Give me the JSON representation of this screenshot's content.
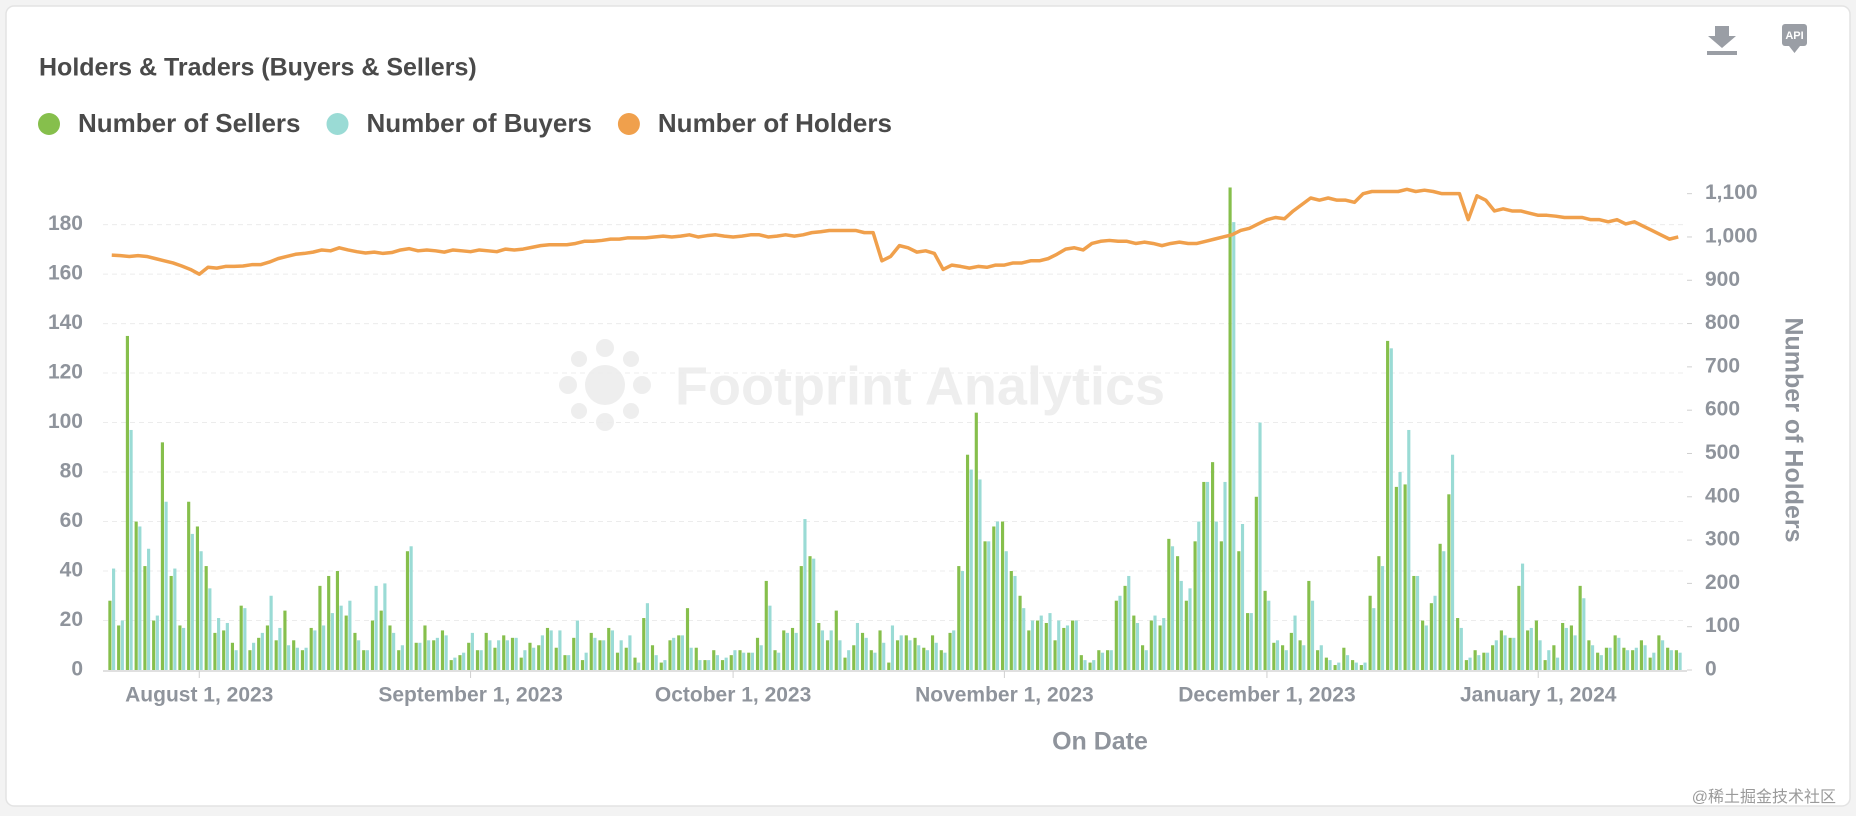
{
  "toolbar": {
    "api": "API"
  },
  "footer": "@稀土掘金技术社区",
  "chart_data": {
    "type": "bar-line",
    "title": "Holders & Traders (Buyers & Sellers)",
    "watermark": "Footprint Analytics",
    "xlabel": "On Date",
    "y2label": "Number of Holders",
    "legend": "top-left",
    "grid": true,
    "xlim": [
      "2023-07-21",
      "2024-01-18"
    ],
    "xticks": [
      {
        "value": "2023-08-01",
        "label": "August 1, 2023"
      },
      {
        "value": "2023-09-01",
        "label": "September 1, 2023"
      },
      {
        "value": "2023-10-01",
        "label": "October 1, 2023"
      },
      {
        "value": "2023-11-01",
        "label": "November 1, 2023"
      },
      {
        "value": "2023-12-01",
        "label": "December 1, 2023"
      },
      {
        "value": "2024-01-01",
        "label": "January 1, 2024"
      }
    ],
    "ylim": [
      0,
      196
    ],
    "yticks": [
      0,
      20,
      40,
      60,
      80,
      100,
      120,
      140,
      160,
      180
    ],
    "y2lim": [
      0,
      1120
    ],
    "y2ticks": [
      0,
      100,
      200,
      300,
      400,
      500,
      600,
      700,
      800,
      900,
      {
        "value": 1000,
        "label": "1,000"
      },
      {
        "value": 1100,
        "label": "1,100"
      }
    ],
    "x": [
      "2023-07-22",
      "2023-07-23",
      "2023-07-24",
      "2023-07-25",
      "2023-07-26",
      "2023-07-27",
      "2023-07-28",
      "2023-07-29",
      "2023-07-30",
      "2023-07-31",
      "2023-08-01",
      "2023-08-02",
      "2023-08-03",
      "2023-08-04",
      "2023-08-05",
      "2023-08-06",
      "2023-08-07",
      "2023-08-08",
      "2023-08-09",
      "2023-08-10",
      "2023-08-11",
      "2023-08-12",
      "2023-08-13",
      "2023-08-14",
      "2023-08-15",
      "2023-08-16",
      "2023-08-17",
      "2023-08-18",
      "2023-08-19",
      "2023-08-20",
      "2023-08-21",
      "2023-08-22",
      "2023-08-23",
      "2023-08-24",
      "2023-08-25",
      "2023-08-26",
      "2023-08-27",
      "2023-08-28",
      "2023-08-29",
      "2023-08-30",
      "2023-08-31",
      "2023-09-01",
      "2023-09-02",
      "2023-09-03",
      "2023-09-04",
      "2023-09-05",
      "2023-09-06",
      "2023-09-07",
      "2023-09-08",
      "2023-09-09",
      "2023-09-10",
      "2023-09-11",
      "2023-09-12",
      "2023-09-13",
      "2023-09-14",
      "2023-09-15",
      "2023-09-16",
      "2023-09-17",
      "2023-09-18",
      "2023-09-19",
      "2023-09-20",
      "2023-09-21",
      "2023-09-22",
      "2023-09-23",
      "2023-09-24",
      "2023-09-25",
      "2023-09-26",
      "2023-09-27",
      "2023-09-28",
      "2023-09-29",
      "2023-09-30",
      "2023-10-01",
      "2023-10-02",
      "2023-10-03",
      "2023-10-04",
      "2023-10-05",
      "2023-10-06",
      "2023-10-07",
      "2023-10-08",
      "2023-10-09",
      "2023-10-10",
      "2023-10-11",
      "2023-10-12",
      "2023-10-13",
      "2023-10-14",
      "2023-10-15",
      "2023-10-16",
      "2023-10-17",
      "2023-10-18",
      "2023-10-19",
      "2023-10-20",
      "2023-10-21",
      "2023-10-22",
      "2023-10-23",
      "2023-10-24",
      "2023-10-25",
      "2023-10-26",
      "2023-10-27",
      "2023-10-28",
      "2023-10-29",
      "2023-10-30",
      "2023-10-31",
      "2023-11-01",
      "2023-11-02",
      "2023-11-03",
      "2023-11-04",
      "2023-11-05",
      "2023-11-06",
      "2023-11-07",
      "2023-11-08",
      "2023-11-09",
      "2023-11-10",
      "2023-11-11",
      "2023-11-12",
      "2023-11-13",
      "2023-11-14",
      "2023-11-15",
      "2023-11-16",
      "2023-11-17",
      "2023-11-18",
      "2023-11-19",
      "2023-11-20",
      "2023-11-21",
      "2023-11-22",
      "2023-11-23",
      "2023-11-24",
      "2023-11-25",
      "2023-11-26",
      "2023-11-27",
      "2023-11-28",
      "2023-11-29",
      "2023-11-30",
      "2023-12-01",
      "2023-12-02",
      "2023-12-03",
      "2023-12-04",
      "2023-12-05",
      "2023-12-06",
      "2023-12-07",
      "2023-12-08",
      "2023-12-09",
      "2023-12-10",
      "2023-12-11",
      "2023-12-12",
      "2023-12-13",
      "2023-12-14",
      "2023-12-15",
      "2023-12-16",
      "2023-12-17",
      "2023-12-18",
      "2023-12-19",
      "2023-12-20",
      "2023-12-21",
      "2023-12-22",
      "2023-12-23",
      "2023-12-24",
      "2023-12-25",
      "2023-12-26",
      "2023-12-27",
      "2023-12-28",
      "2023-12-29",
      "2023-12-30",
      "2023-12-31",
      "2024-01-01",
      "2024-01-02",
      "2024-01-03",
      "2024-01-04",
      "2024-01-05",
      "2024-01-06",
      "2024-01-07",
      "2024-01-08",
      "2024-01-09",
      "2024-01-10",
      "2024-01-11",
      "2024-01-12",
      "2024-01-13",
      "2024-01-14",
      "2024-01-15",
      "2024-01-16",
      "2024-01-17"
    ],
    "series": [
      {
        "name": "Number of Sellers",
        "type": "bar",
        "color": "#86bf4c",
        "values": [
          28,
          18,
          135,
          60,
          42,
          20,
          92,
          38,
          18,
          68,
          58,
          42,
          15,
          16,
          11,
          26,
          8,
          13,
          18,
          12,
          24,
          12,
          8,
          17,
          34,
          38,
          40,
          22,
          15,
          8,
          20,
          24,
          18,
          8,
          48,
          11,
          18,
          12,
          16,
          4,
          6,
          11,
          8,
          15,
          9,
          14,
          13,
          5,
          11,
          10,
          17,
          9,
          6,
          13,
          4,
          15,
          12,
          17,
          7,
          9,
          5,
          21,
          10,
          3,
          12,
          14,
          25,
          9,
          4,
          8,
          4,
          6,
          8,
          7,
          13,
          36,
          8,
          16,
          17,
          42,
          46,
          19,
          12,
          24,
          5,
          10,
          15,
          8,
          16,
          3,
          12,
          14,
          13,
          9,
          14,
          8,
          15,
          42,
          87,
          104,
          52,
          58,
          60,
          40,
          30,
          16,
          20,
          19,
          12,
          17,
          20,
          6,
          3,
          8,
          8,
          28,
          34,
          22,
          10,
          20,
          18,
          53,
          46,
          28,
          52,
          76,
          84,
          52,
          195,
          48,
          23,
          70,
          32,
          11,
          10,
          15,
          12,
          36,
          8,
          5,
          2,
          9,
          4,
          2,
          30,
          46,
          133,
          74,
          75,
          38,
          20,
          27,
          51,
          71,
          21,
          4,
          8,
          7,
          10,
          16,
          13,
          34,
          16,
          20,
          4,
          10,
          19,
          18,
          34,
          12,
          7,
          9,
          14,
          9,
          8,
          12,
          5,
          14,
          9,
          8
        ]
      },
      {
        "name": "Number of Buyers",
        "type": "bar",
        "color": "#9adbd5",
        "values": [
          41,
          20,
          97,
          58,
          49,
          22,
          68,
          41,
          17,
          55,
          48,
          33,
          21,
          19,
          8,
          25,
          11,
          15,
          30,
          17,
          10,
          9,
          9,
          16,
          18,
          23,
          26,
          28,
          12,
          8,
          34,
          35,
          15,
          10,
          50,
          11,
          12,
          13,
          14,
          5,
          7,
          15,
          8,
          12,
          12,
          12,
          13,
          8,
          9,
          14,
          16,
          16,
          6,
          20,
          7,
          13,
          12,
          16,
          12,
          14,
          3,
          27,
          6,
          4,
          13,
          14,
          9,
          4,
          4,
          6,
          5,
          8,
          7,
          7,
          10,
          26,
          7,
          15,
          15,
          61,
          45,
          16,
          16,
          12,
          8,
          19,
          13,
          7,
          11,
          18,
          14,
          12,
          10,
          8,
          11,
          7,
          16,
          40,
          81,
          77,
          52,
          60,
          48,
          38,
          25,
          20,
          22,
          23,
          20,
          18,
          20,
          4,
          4,
          7,
          8,
          30,
          38,
          19,
          8,
          22,
          21,
          50,
          36,
          33,
          60,
          76,
          60,
          76,
          181,
          59,
          23,
          100,
          28,
          12,
          8,
          22,
          10,
          28,
          10,
          4,
          3,
          6,
          3,
          3,
          25,
          42,
          130,
          80,
          97,
          38,
          18,
          30,
          48,
          87,
          17,
          5,
          6,
          7,
          12,
          14,
          13,
          43,
          17,
          12,
          8,
          5,
          17,
          14,
          29,
          10,
          6,
          9,
          13,
          8,
          9,
          10,
          7,
          12,
          8,
          7
        ]
      },
      {
        "name": "Number of Holders",
        "type": "line",
        "axis": "y2",
        "color": "#f0a04c",
        "values": [
          958,
          957,
          955,
          957,
          955,
          950,
          945,
          940,
          933,
          925,
          914,
          930,
          928,
          932,
          932,
          933,
          936,
          936,
          942,
          950,
          955,
          960,
          962,
          965,
          970,
          968,
          975,
          970,
          966,
          963,
          965,
          962,
          964,
          970,
          973,
          968,
          970,
          968,
          965,
          970,
          968,
          966,
          970,
          968,
          966,
          972,
          970,
          972,
          976,
          980,
          982,
          982,
          982,
          985,
          990,
          990,
          992,
          995,
          995,
          998,
          998,
          998,
          1000,
          1002,
          1000,
          1002,
          1005,
          1000,
          1003,
          1005,
          1002,
          1000,
          1002,
          1005,
          1005,
          1000,
          1002,
          1005,
          1002,
          1005,
          1010,
          1012,
          1015,
          1015,
          1015,
          1015,
          1010,
          1010,
          945,
          955,
          980,
          975,
          965,
          968,
          962,
          925,
          935,
          932,
          928,
          932,
          930,
          935,
          935,
          940,
          940,
          945,
          945,
          950,
          960,
          972,
          975,
          970,
          985,
          990,
          992,
          990,
          990,
          985,
          988,
          985,
          980,
          985,
          988,
          985,
          985,
          990,
          995,
          1000,
          1005,
          1015,
          1020,
          1030,
          1040,
          1045,
          1042,
          1060,
          1075,
          1090,
          1085,
          1090,
          1085,
          1085,
          1080,
          1100,
          1105,
          1105,
          1105,
          1105,
          1110,
          1105,
          1108,
          1105,
          1100,
          1100,
          1100,
          1040,
          1095,
          1085,
          1060,
          1065,
          1060,
          1060,
          1055,
          1050,
          1050,
          1048,
          1045,
          1045,
          1045,
          1040,
          1040,
          1035,
          1040,
          1030,
          1035,
          1025,
          1015,
          1005,
          995,
          1000
        ]
      }
    ]
  }
}
